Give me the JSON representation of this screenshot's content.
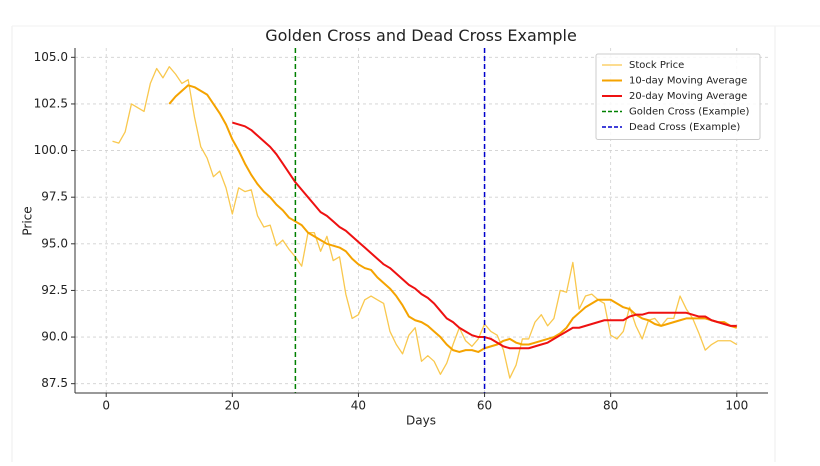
{
  "chart_data": {
    "type": "line",
    "title": "Golden Cross and Dead Cross Example",
    "xlabel": "Days",
    "ylabel": "Price",
    "x": [
      1,
      2,
      3,
      4,
      5,
      6,
      7,
      8,
      9,
      10,
      11,
      12,
      13,
      14,
      15,
      16,
      17,
      18,
      19,
      20,
      21,
      22,
      23,
      24,
      25,
      26,
      27,
      28,
      29,
      30,
      31,
      32,
      33,
      34,
      35,
      36,
      37,
      38,
      39,
      40,
      41,
      42,
      43,
      44,
      45,
      46,
      47,
      48,
      49,
      50,
      51,
      52,
      53,
      54,
      55,
      56,
      57,
      58,
      59,
      60,
      61,
      62,
      63,
      64,
      65,
      66,
      67,
      68,
      69,
      70,
      71,
      72,
      73,
      74,
      75,
      76,
      77,
      78,
      79,
      80,
      81,
      82,
      83,
      84,
      85,
      86,
      87,
      88,
      89,
      90,
      91,
      92,
      93,
      94,
      95,
      96,
      97,
      98,
      99,
      100
    ],
    "series": [
      {
        "name": "Stock Price",
        "color": "#f9c84e",
        "width": 1.3,
        "values": [
          100.5,
          100.4,
          101.0,
          102.5,
          102.3,
          102.1,
          103.6,
          104.4,
          103.9,
          104.5,
          104.1,
          103.6,
          103.8,
          101.8,
          100.2,
          99.6,
          98.6,
          98.9,
          98.0,
          96.6,
          98.0,
          97.8,
          97.9,
          96.5,
          95.9,
          96.0,
          94.9,
          95.2,
          94.7,
          94.3,
          93.8,
          95.6,
          95.6,
          94.6,
          95.4,
          94.1,
          94.3,
          92.3,
          91.0,
          91.2,
          92.0,
          92.2,
          92.0,
          91.8,
          90.3,
          89.6,
          89.1,
          90.1,
          90.5,
          88.7,
          89.0,
          88.7,
          88.0,
          88.6,
          89.6,
          90.5,
          89.8,
          89.5,
          89.9,
          90.7,
          90.3,
          90.1,
          89.3,
          87.8,
          88.5,
          89.9,
          89.9,
          90.8,
          91.2,
          90.6,
          91.0,
          92.5,
          92.4,
          94.0,
          91.5,
          92.2,
          92.3,
          92.0,
          91.8,
          90.1,
          89.9,
          90.3,
          91.6,
          90.6,
          89.9,
          90.9,
          91.0,
          90.6,
          91.0,
          91.0,
          92.2,
          91.5,
          91.0,
          90.2,
          89.3,
          89.6,
          89.8,
          89.8,
          89.8,
          89.6
        ]
      },
      {
        "name": "10-day Moving Average",
        "color": "#f5a300",
        "width": 2,
        "values": [
          null,
          null,
          null,
          null,
          null,
          null,
          null,
          null,
          null,
          102.5,
          102.9,
          103.2,
          103.5,
          103.4,
          103.2,
          103.0,
          102.5,
          102.0,
          101.4,
          100.6,
          100.0,
          99.3,
          98.7,
          98.2,
          97.8,
          97.5,
          97.1,
          96.8,
          96.4,
          96.2,
          96.0,
          95.6,
          95.4,
          95.2,
          95.0,
          94.9,
          94.8,
          94.6,
          94.2,
          93.9,
          93.7,
          93.6,
          93.2,
          92.9,
          92.6,
          92.2,
          91.7,
          91.1,
          90.9,
          90.8,
          90.6,
          90.3,
          90.0,
          89.6,
          89.3,
          89.2,
          89.3,
          89.3,
          89.2,
          89.4,
          89.5,
          89.6,
          89.8,
          89.9,
          89.7,
          89.6,
          89.6,
          89.7,
          89.8,
          89.9,
          90.0,
          90.2,
          90.5,
          91.0,
          91.3,
          91.6,
          91.8,
          92.0,
          92.0,
          92.0,
          91.8,
          91.6,
          91.5,
          91.2,
          91.0,
          90.9,
          90.7,
          90.6,
          90.7,
          90.8,
          90.9,
          91.0,
          91.0,
          91.0,
          91.0,
          90.9,
          90.8,
          90.8,
          90.6,
          90.5
        ]
      },
      {
        "name": "20-day Moving Average",
        "color": "#ee1111",
        "width": 2,
        "values": [
          null,
          null,
          null,
          null,
          null,
          null,
          null,
          null,
          null,
          null,
          null,
          null,
          null,
          null,
          null,
          null,
          null,
          null,
          null,
          101.5,
          101.4,
          101.3,
          101.1,
          100.8,
          100.5,
          100.2,
          99.8,
          99.3,
          98.8,
          98.3,
          97.9,
          97.5,
          97.1,
          96.7,
          96.5,
          96.2,
          95.9,
          95.7,
          95.4,
          95.1,
          94.8,
          94.5,
          94.2,
          93.9,
          93.7,
          93.4,
          93.1,
          92.8,
          92.6,
          92.3,
          92.1,
          91.8,
          91.4,
          91.0,
          90.8,
          90.5,
          90.3,
          90.1,
          90.0,
          90.0,
          89.9,
          89.7,
          89.5,
          89.4,
          89.4,
          89.4,
          89.4,
          89.5,
          89.6,
          89.7,
          89.9,
          90.1,
          90.3,
          90.5,
          90.5,
          90.6,
          90.7,
          90.8,
          90.9,
          90.9,
          90.9,
          90.9,
          91.1,
          91.2,
          91.2,
          91.3,
          91.3,
          91.3,
          91.3,
          91.3,
          91.3,
          91.3,
          91.2,
          91.1,
          91.1,
          90.9,
          90.8,
          90.7,
          90.6,
          90.6
        ]
      }
    ],
    "vlines": [
      {
        "name": "Golden Cross (Example)",
        "x": 30,
        "color": "#008000"
      },
      {
        "name": "Dead Cross (Example)",
        "x": 60,
        "color": "#0000cc"
      }
    ],
    "xlim": [
      -4.95,
      104.95
    ],
    "ylim": [
      87.0,
      105.5
    ],
    "xticks": [
      0,
      20,
      40,
      60,
      80,
      100
    ],
    "yticks": [
      87.5,
      {
        "value": 90,
        "label": "90.0"
      },
      92.5,
      {
        "value": 95,
        "label": "95.0"
      },
      97.5,
      {
        "value": 100,
        "label": "100.0"
      },
      102.5,
      {
        "value": 105,
        "label": "105.0"
      }
    ],
    "grid": true,
    "legend": "upper right"
  }
}
